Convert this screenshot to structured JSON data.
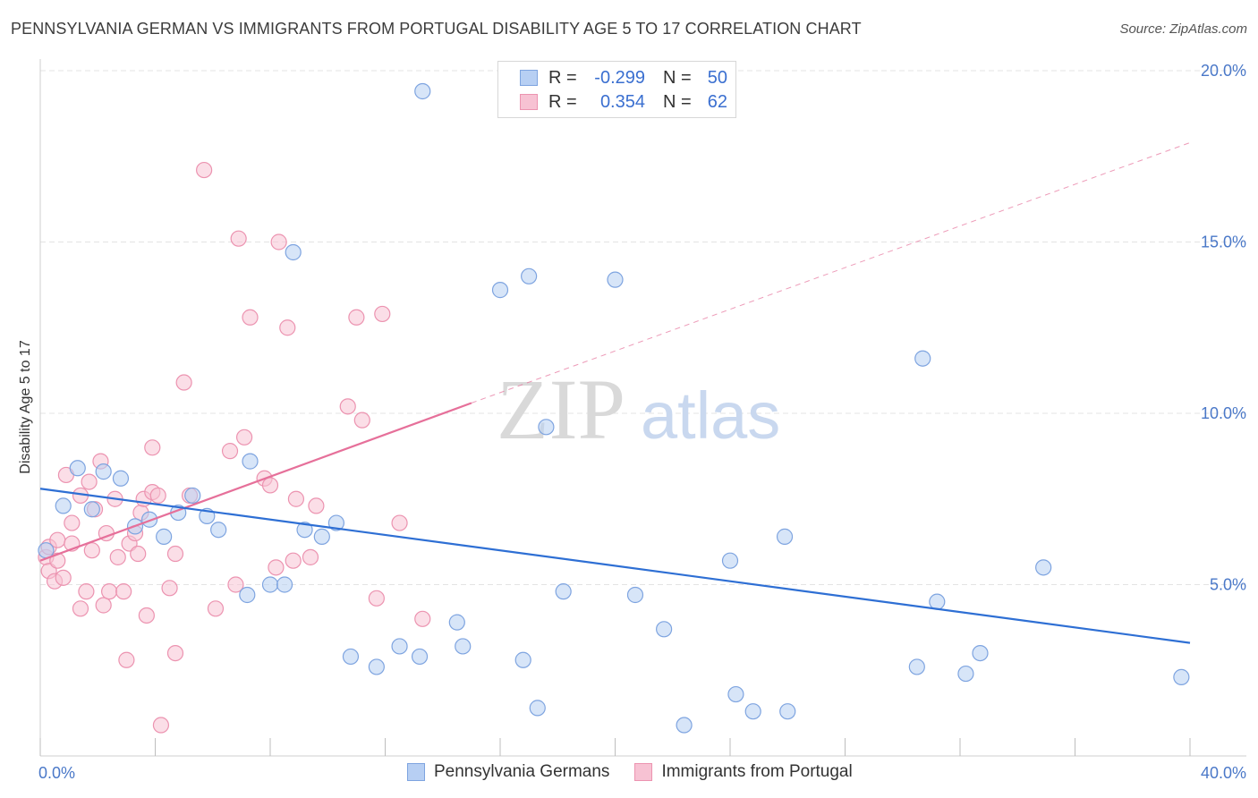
{
  "title": "PENNSYLVANIA GERMAN VS IMMIGRANTS FROM PORTUGAL DISABILITY AGE 5 TO 17 CORRELATION CHART",
  "source": "Source: ZipAtlas.com",
  "watermark": {
    "zip": "ZIP",
    "atlas": "atlas"
  },
  "legend": {
    "rows": [
      {
        "r_label": "R =",
        "r_value": "-0.299",
        "n_label": "N =",
        "n_value": "50"
      },
      {
        "r_label": "R =",
        "r_value": "0.354",
        "n_label": "N =",
        "n_value": "62"
      }
    ]
  },
  "colors": {
    "blue_fill": "#b7cff3",
    "blue_stroke": "#7ea4e0",
    "blue_line": "#2e6fd4",
    "pink_fill": "#f7c2d3",
    "pink_stroke": "#ec93b0",
    "pink_line": "#e6709a",
    "grid": "#e3e3e3",
    "tick_label": "#4a78c8"
  },
  "chart_data": {
    "type": "scatter",
    "title": "PENNSYLVANIA GERMAN VS IMMIGRANTS FROM PORTUGAL DISABILITY AGE 5 TO 17 CORRELATION CHART",
    "xlabel": "",
    "ylabel": "Disability Age 5 to 17",
    "xlim": [
      0,
      40
    ],
    "ylim": [
      0,
      20
    ],
    "x_tick_labels": [
      "0.0%",
      "40.0%"
    ],
    "y_ticks": [
      5,
      10,
      15,
      20
    ],
    "y_tick_labels": [
      "5.0%",
      "10.0%",
      "15.0%",
      "20.0%"
    ],
    "grid": true,
    "legend_position": "bottom-center",
    "series": [
      {
        "name": "Pennsylvania Germans",
        "color": "#b7cff3",
        "trend": {
          "x": [
            0,
            40
          ],
          "y": [
            7.8,
            3.3
          ],
          "dashed_extension": false
        },
        "points": [
          [
            0.2,
            6.0
          ],
          [
            1.3,
            8.4
          ],
          [
            0.8,
            7.3
          ],
          [
            2.2,
            8.3
          ],
          [
            2.8,
            8.1
          ],
          [
            1.8,
            7.2
          ],
          [
            3.3,
            6.7
          ],
          [
            3.8,
            6.9
          ],
          [
            4.3,
            6.4
          ],
          [
            4.8,
            7.1
          ],
          [
            5.3,
            7.6
          ],
          [
            5.8,
            7.0
          ],
          [
            6.2,
            6.6
          ],
          [
            7.2,
            4.7
          ],
          [
            7.3,
            8.6
          ],
          [
            8.0,
            5.0
          ],
          [
            8.5,
            5.0
          ],
          [
            8.8,
            14.7
          ],
          [
            9.2,
            6.6
          ],
          [
            9.8,
            6.4
          ],
          [
            10.3,
            6.8
          ],
          [
            10.8,
            2.9
          ],
          [
            11.7,
            2.6
          ],
          [
            12.5,
            3.2
          ],
          [
            13.3,
            19.4
          ],
          [
            13.2,
            2.9
          ],
          [
            14.5,
            3.9
          ],
          [
            14.7,
            3.2
          ],
          [
            16.0,
            13.6
          ],
          [
            16.8,
            2.8
          ],
          [
            17.0,
            14.0
          ],
          [
            17.3,
            1.4
          ],
          [
            17.6,
            9.6
          ],
          [
            18.2,
            4.8
          ],
          [
            20.0,
            13.9
          ],
          [
            20.7,
            4.7
          ],
          [
            21.7,
            3.7
          ],
          [
            22.4,
            0.9
          ],
          [
            24.0,
            5.7
          ],
          [
            24.2,
            1.8
          ],
          [
            24.8,
            1.3
          ],
          [
            25.9,
            6.4
          ],
          [
            26.0,
            1.3
          ],
          [
            30.5,
            2.6
          ],
          [
            30.7,
            11.6
          ],
          [
            31.2,
            4.5
          ],
          [
            32.2,
            2.4
          ],
          [
            32.7,
            3.0
          ],
          [
            34.9,
            5.5
          ],
          [
            39.7,
            2.3
          ]
        ]
      },
      {
        "name": "Immigrants from Portugal",
        "color": "#f7c2d3",
        "trend": {
          "x": [
            0,
            15
          ],
          "y": [
            5.7,
            10.3
          ],
          "dashed_to_x": 40,
          "dashed_to_y": 17.9
        },
        "points": [
          [
            0.2,
            5.8
          ],
          [
            0.3,
            5.4
          ],
          [
            0.3,
            6.1
          ],
          [
            0.5,
            5.1
          ],
          [
            0.6,
            6.3
          ],
          [
            0.6,
            5.7
          ],
          [
            0.8,
            5.2
          ],
          [
            0.9,
            8.2
          ],
          [
            1.1,
            6.8
          ],
          [
            1.1,
            6.2
          ],
          [
            1.4,
            7.6
          ],
          [
            1.4,
            4.3
          ],
          [
            1.6,
            4.8
          ],
          [
            1.7,
            8.0
          ],
          [
            1.8,
            6.0
          ],
          [
            1.9,
            7.2
          ],
          [
            2.1,
            8.6
          ],
          [
            2.2,
            4.4
          ],
          [
            2.3,
            6.5
          ],
          [
            2.4,
            4.8
          ],
          [
            2.6,
            7.5
          ],
          [
            2.7,
            5.8
          ],
          [
            2.9,
            4.8
          ],
          [
            3.0,
            2.8
          ],
          [
            3.1,
            6.2
          ],
          [
            3.3,
            6.5
          ],
          [
            3.4,
            5.9
          ],
          [
            3.5,
            7.1
          ],
          [
            3.6,
            7.5
          ],
          [
            3.7,
            4.1
          ],
          [
            3.9,
            7.7
          ],
          [
            3.9,
            9.0
          ],
          [
            4.1,
            7.6
          ],
          [
            4.2,
            0.9
          ],
          [
            4.5,
            4.9
          ],
          [
            4.7,
            5.9
          ],
          [
            4.7,
            3.0
          ],
          [
            5.0,
            10.9
          ],
          [
            5.2,
            7.6
          ],
          [
            5.7,
            17.1
          ],
          [
            6.1,
            4.3
          ],
          [
            6.6,
            8.9
          ],
          [
            6.8,
            5.0
          ],
          [
            6.9,
            15.1
          ],
          [
            7.1,
            9.3
          ],
          [
            7.3,
            12.8
          ],
          [
            7.8,
            8.1
          ],
          [
            8.0,
            7.9
          ],
          [
            8.2,
            5.5
          ],
          [
            8.3,
            15.0
          ],
          [
            8.6,
            12.5
          ],
          [
            8.8,
            5.7
          ],
          [
            8.9,
            7.5
          ],
          [
            9.4,
            5.8
          ],
          [
            9.6,
            7.3
          ],
          [
            10.7,
            10.2
          ],
          [
            11.0,
            12.8
          ],
          [
            11.2,
            9.8
          ],
          [
            11.7,
            4.6
          ],
          [
            11.9,
            12.9
          ],
          [
            12.5,
            6.8
          ],
          [
            13.3,
            4.0
          ]
        ]
      }
    ]
  },
  "bottom_legend": [
    {
      "label": "Pennsylvania Germans"
    },
    {
      "label": "Immigrants from Portugal"
    }
  ]
}
